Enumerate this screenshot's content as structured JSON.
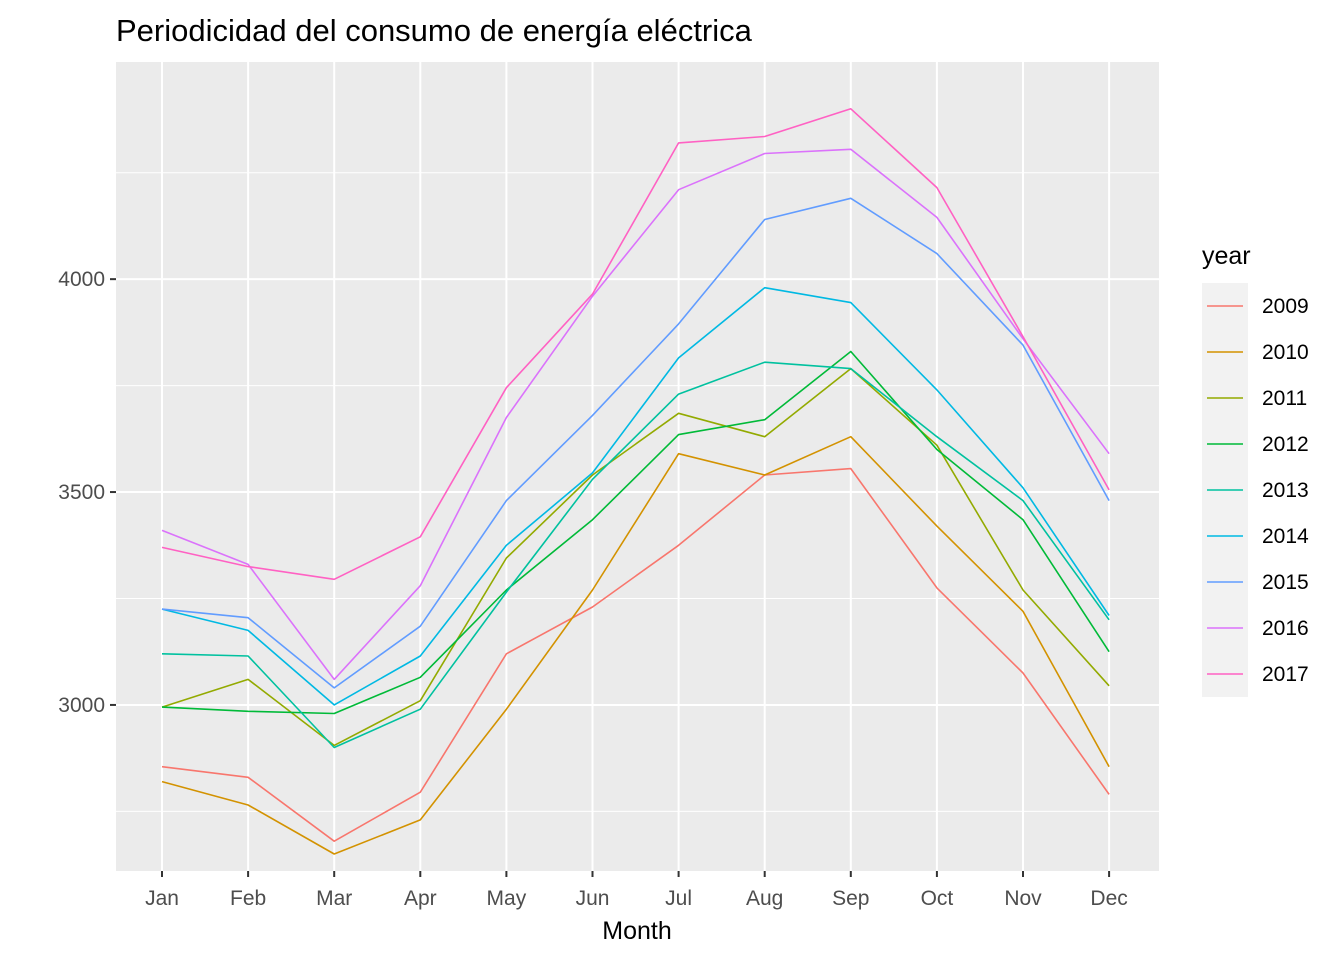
{
  "chart_data": {
    "type": "line",
    "title": "Periodicidad del consumo de energía eléctrica",
    "xlabel": "Month",
    "ylabel": "",
    "categories": [
      "Jan",
      "Feb",
      "Mar",
      "Apr",
      "May",
      "Jun",
      "Jul",
      "Aug",
      "Sep",
      "Oct",
      "Nov",
      "Dec"
    ],
    "ylim": [
      2610,
      4510
    ],
    "yticks": [
      3000,
      3500,
      4000
    ],
    "grid": true,
    "legend": {
      "title": "year",
      "placement": "right"
    },
    "series": [
      {
        "name": "2009",
        "color": "#F8766D",
        "values": [
          2855,
          2830,
          2680,
          2795,
          3120,
          3230,
          3375,
          3540,
          3555,
          3275,
          3075,
          2790
        ]
      },
      {
        "name": "2010",
        "color": "#D39200",
        "values": [
          2820,
          2765,
          2650,
          2730,
          2990,
          3270,
          3590,
          3540,
          3630,
          3420,
          3220,
          2855
        ]
      },
      {
        "name": "2011",
        "color": "#93AA00",
        "values": [
          2995,
          3060,
          2905,
          3010,
          3345,
          3540,
          3685,
          3630,
          3790,
          3610,
          3270,
          3045
        ]
      },
      {
        "name": "2012",
        "color": "#00BA38",
        "values": [
          2995,
          2985,
          2980,
          3065,
          3270,
          3435,
          3635,
          3670,
          3830,
          3600,
          3435,
          3125
        ]
      },
      {
        "name": "2013",
        "color": "#00C19F",
        "values": [
          3120,
          3115,
          2900,
          2990,
          3265,
          3530,
          3730,
          3805,
          3790,
          3630,
          3480,
          3200
        ]
      },
      {
        "name": "2014",
        "color": "#00B9E3",
        "values": [
          3225,
          3175,
          3000,
          3115,
          3375,
          3545,
          3815,
          3980,
          3945,
          3740,
          3510,
          3210
        ]
      },
      {
        "name": "2015",
        "color": "#619CFF",
        "values": [
          3225,
          3205,
          3040,
          3185,
          3480,
          3680,
          3895,
          4140,
          4190,
          4060,
          3845,
          3480
        ]
      },
      {
        "name": "2016",
        "color": "#DB72FB",
        "values": [
          3410,
          3330,
          3060,
          3280,
          3675,
          3960,
          4210,
          4295,
          4305,
          4145,
          3860,
          3590
        ]
      },
      {
        "name": "2017",
        "color": "#FF61C3",
        "values": [
          3370,
          3325,
          3295,
          3395,
          3745,
          3965,
          4320,
          4335,
          4400,
          4215,
          3865,
          3505
        ]
      }
    ]
  }
}
